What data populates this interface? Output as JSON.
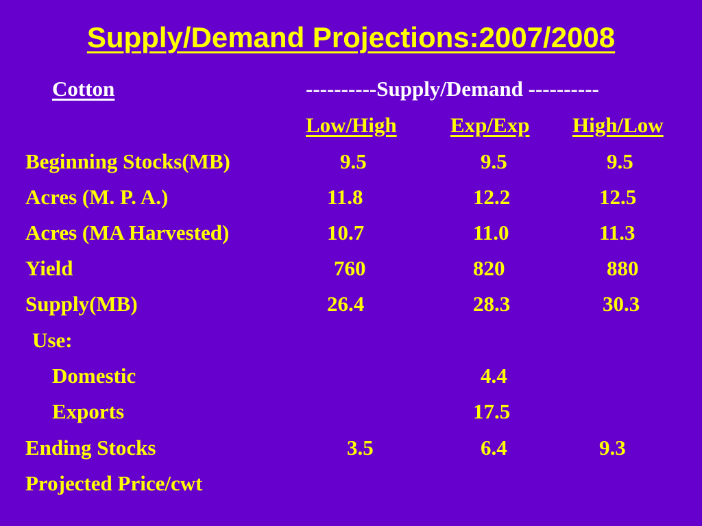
{
  "slide": {
    "title": "Supply/Demand Projections:2007/2008",
    "commodity": "Cotton",
    "group_header": "----------Supply/Demand ----------",
    "columns": [
      "Low/High",
      "Exp/Exp",
      "High/Low"
    ]
  },
  "rows": {
    "beginning_stocks": {
      "label": "Beginning Stocks(MB)",
      "values": [
        "9.5",
        "9.5",
        "9.5"
      ]
    },
    "acres_mpa": {
      "label": "Acres (M. P. A.)",
      "values": [
        "11.8",
        "12.2",
        "12.5"
      ]
    },
    "acres_harvested": {
      "label": "Acres (MA Harvested)",
      "values": [
        "10.7",
        "11.0",
        "11.3"
      ]
    },
    "yield": {
      "label": "Yield",
      "values": [
        "760",
        "820",
        "880"
      ]
    },
    "supply": {
      "label": "Supply(MB)",
      "values": [
        "26.4",
        "28.3",
        "30.3"
      ]
    },
    "use": {
      "label": "Use:"
    },
    "domestic": {
      "label": "Domestic",
      "values": [
        "",
        "4.4",
        ""
      ]
    },
    "exports": {
      "label": "Exports",
      "values": [
        "",
        "17.5",
        ""
      ]
    },
    "ending_stocks": {
      "label": "Ending Stocks",
      "values": [
        "3.5",
        "6.4",
        "9.3"
      ]
    },
    "projected_price": {
      "label": "Projected Price/cwt"
    }
  },
  "colors": {
    "background": "#6600CC",
    "text": "#FFFF00",
    "accent_text": "#FFFFFF"
  }
}
